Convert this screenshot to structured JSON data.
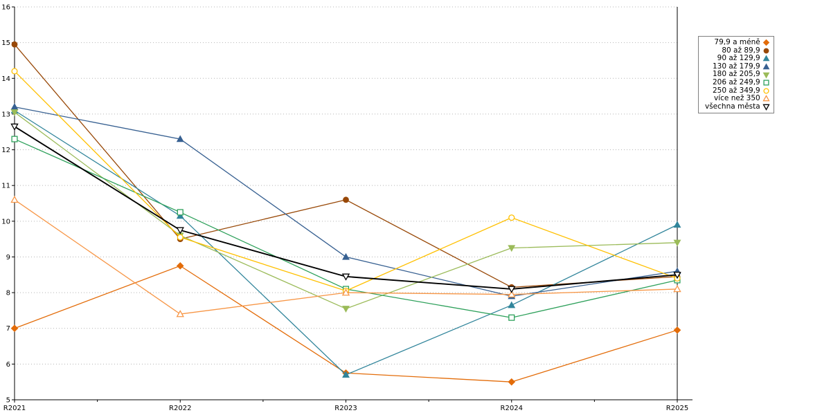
{
  "chart_data": {
    "type": "line",
    "title": "",
    "xlabel": "",
    "ylabel": "",
    "x_labels": [
      "R2021",
      "R2022",
      "R2023",
      "R2024",
      "R2025"
    ],
    "ylim": [
      5,
      16
    ],
    "y_ticks": [
      5,
      6,
      7,
      8,
      9,
      10,
      11,
      12,
      13,
      14,
      15,
      16
    ],
    "grid": "horizontal-dotted",
    "legend_position": "right",
    "series": [
      {
        "name": "79,9 a méně",
        "color": "#E36C09",
        "marker": "diamond",
        "fill": "solid",
        "line_width": 1.3,
        "values": [
          7.0,
          8.75,
          5.75,
          5.5,
          6.95
        ]
      },
      {
        "name": "80 až 89,9",
        "color": "#984807",
        "marker": "circle",
        "fill": "solid",
        "line_width": 1.3,
        "values": [
          14.95,
          9.5,
          10.6,
          8.15,
          8.45
        ]
      },
      {
        "name": "90 až 129,9",
        "color": "#31859B",
        "marker": "triangle-up",
        "fill": "solid",
        "line_width": 1.3,
        "values": [
          13.1,
          10.15,
          5.7,
          7.65,
          9.9
        ]
      },
      {
        "name": "130 až 179,9",
        "color": "#376091",
        "marker": "triangle-up",
        "fill": "solid",
        "line_width": 1.3,
        "values": [
          13.2,
          12.3,
          9.0,
          7.9,
          8.6
        ]
      },
      {
        "name": "180 až 205,9",
        "color": "#9BBB59",
        "marker": "triangle-down",
        "fill": "solid",
        "line_width": 1.3,
        "values": [
          13.05,
          9.6,
          7.55,
          9.25,
          9.4
        ]
      },
      {
        "name": "206 až 249,9",
        "color": "#2DA05A",
        "marker": "square",
        "fill": "open",
        "line_width": 1.3,
        "values": [
          12.3,
          10.25,
          8.1,
          7.3,
          8.35
        ]
      },
      {
        "name": "250 až 349,9",
        "color": "#FFC000",
        "marker": "circle",
        "fill": "open",
        "line_width": 1.3,
        "values": [
          14.2,
          9.55,
          8.05,
          10.1,
          8.4
        ]
      },
      {
        "name": "více než 350",
        "color": "#F79646",
        "marker": "triangle-up",
        "fill": "open",
        "line_width": 1.3,
        "values": [
          10.6,
          7.4,
          8.0,
          7.95,
          8.1
        ]
      },
      {
        "name": "všechna města",
        "color": "#000000",
        "marker": "triangle-down",
        "fill": "open",
        "line_width": 1.9,
        "values": [
          12.65,
          9.75,
          8.45,
          8.1,
          8.5
        ]
      }
    ]
  },
  "style": {
    "axis_color": "#000000",
    "grid_color": "#b3b3b3",
    "background": "#ffffff"
  }
}
